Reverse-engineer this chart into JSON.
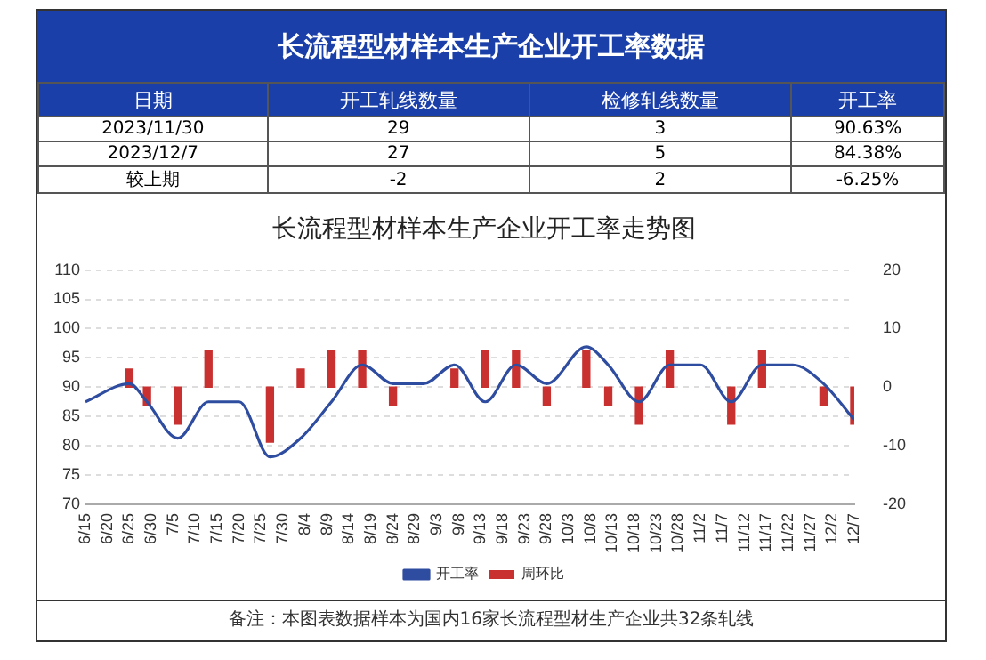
{
  "chart_data": [
    {
      "type": "other",
      "title": "长流程型材样本生产企业开工率数据",
      "annotations": [
        "日期",
        "开工轧线数量",
        "检修轧线数量",
        "开工率",
        "2023/11/30",
        "29",
        "3",
        "90.63%",
        "2023/12/7",
        "27",
        "5",
        "84.38%",
        "较上期",
        "-2",
        "2",
        "-6.25%"
      ]
    },
    {
      "type": "bar",
      "title": "长流程型材样本生产企业开工率走势图",
      "x": [
        "--06-15",
        "--06-25",
        "--06-29",
        "--07-06",
        "--07-13",
        "--07-20",
        "--07-27",
        "--08-03",
        "--08-10",
        "--08-17",
        "--08-24",
        "--08-31",
        "--09-07",
        "--09-14",
        "--09-21",
        "--09-28",
        "--10-07",
        "--10-12",
        "--10-19",
        "--10-26",
        "--11-02",
        "--11-09",
        "--11-16",
        "--11-23",
        "--11-30",
        "--12-07"
      ],
      "series": [
        {
          "name": "周环比",
          "type": "bar",
          "axis": "y2",
          "color": "#c8312f",
          "values": [
            null,
            3.1,
            -3.1,
            -6.3,
            6.3,
            null,
            -9.4,
            3.1,
            6.3,
            6.3,
            -3.1,
            null,
            3.1,
            6.3,
            6.3,
            -3.1,
            6.3,
            -3.1,
            -6.3,
            6.3,
            null,
            -6.3,
            6.3,
            null,
            -3.1,
            -6.3
          ]
        },
        {
          "name": "开工率",
          "type": "line",
          "color": "#2f4da0",
          "values": [
            87.5,
            90.6,
            87.5,
            81.3,
            87.5,
            87.5,
            78.1,
            81.3,
            87.5,
            93.8,
            90.6,
            90.6,
            93.8,
            87.5,
            93.8,
            90.6,
            96.9,
            93.8,
            87.5,
            93.8,
            93.8,
            87.5,
            93.8,
            93.8,
            90.6,
            84.4
          ]
        }
      ],
      "xlim": [
        "--06-15",
        "--12-07"
      ],
      "xticks": [
        {
          "value": "--06-15",
          "label": "6/15"
        },
        {
          "value": "--06-20",
          "label": "6/20"
        },
        {
          "value": "--06-25",
          "label": "6/25"
        },
        {
          "value": "--06-30",
          "label": "6/30"
        },
        {
          "value": "--07-05",
          "label": "7/5"
        },
        {
          "value": "--07-10",
          "label": "7/10"
        },
        {
          "value": "--07-15",
          "label": "7/15"
        },
        {
          "value": "--07-20",
          "label": "7/20"
        },
        {
          "value": "--07-25",
          "label": "7/25"
        },
        {
          "value": "--07-30",
          "label": "7/30"
        },
        {
          "value": "--08-04",
          "label": "8/4"
        },
        {
          "value": "--08-09",
          "label": "8/9"
        },
        {
          "value": "--08-14",
          "label": "8/14"
        },
        {
          "value": "--08-19",
          "label": "8/19"
        },
        {
          "value": "--08-24",
          "label": "8/24"
        },
        {
          "value": "--08-29",
          "label": "8/29"
        },
        {
          "value": "--09-03",
          "label": "9/3"
        },
        {
          "value": "--09-08",
          "label": "9/8"
        },
        {
          "value": "--09-13",
          "label": "9/13"
        },
        {
          "value": "--09-18",
          "label": "9/18"
        },
        {
          "value": "--09-23",
          "label": "9/23"
        },
        {
          "value": "--09-28",
          "label": "9/28"
        },
        {
          "value": "--10-03",
          "label": "10/3"
        },
        {
          "value": "--10-08",
          "label": "10/8"
        },
        {
          "value": "--10-13",
          "label": "10/13"
        },
        {
          "value": "--10-18",
          "label": "10/18"
        },
        {
          "value": "--10-23",
          "label": "10/23"
        },
        {
          "value": "--10-28",
          "label": "10/28"
        },
        {
          "value": "--11-02",
          "label": "11/2"
        },
        {
          "value": "--11-07",
          "label": "11/7"
        },
        {
          "value": "--11-12",
          "label": "11/12"
        },
        {
          "value": "--11-17",
          "label": "11/17"
        },
        {
          "value": "--11-22",
          "label": "11/22"
        },
        {
          "value": "--11-27",
          "label": "11/27"
        },
        {
          "value": "--12-02",
          "label": "12/2"
        },
        {
          "value": "--12-07",
          "label": "12/7"
        }
      ],
      "ylim": [
        70,
        110
      ],
      "yticks": [
        70,
        75,
        80,
        85,
        90,
        95,
        100,
        105,
        110
      ],
      "y2lim": [
        -20,
        20
      ],
      "y2ticks": [
        -20,
        -10,
        0,
        10,
        20
      ],
      "grid": "y",
      "legend": "bottom",
      "marker": "none",
      "line_style": "solid",
      "annotations": [
        "备注：本图表数据样本为国内16家长流程型材生产企业共32条轧线"
      ]
    }
  ]
}
